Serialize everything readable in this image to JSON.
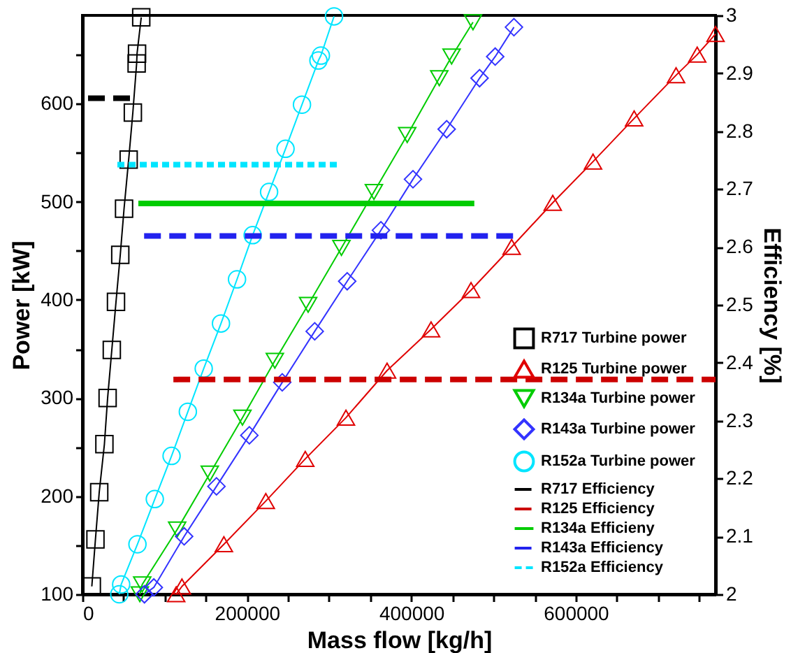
{
  "chart_data": {
    "type": "line",
    "xlabel": "Mass flow [kg/h]",
    "ylabel": "Power [kW]",
    "y2label": "Efficiency [%]",
    "xlim": [
      0,
      770000
    ],
    "ylim": [
      100,
      690
    ],
    "y2lim": [
      2,
      3
    ],
    "xticks": [
      0,
      {
        "value": 50000,
        "label": null
      },
      {
        "value": 100000,
        "label": null
      },
      {
        "value": 150000,
        "label": null
      },
      200000,
      {
        "value": 250000,
        "label": null
      },
      {
        "value": 300000,
        "label": null
      },
      {
        "value": 350000,
        "label": null
      },
      400000,
      {
        "value": 450000,
        "label": null
      },
      {
        "value": 500000,
        "label": null
      },
      {
        "value": 550000,
        "label": null
      },
      600000,
      {
        "value": 650000,
        "label": null
      },
      {
        "value": 700000,
        "label": null
      },
      {
        "value": 750000,
        "label": null
      }
    ],
    "yticks": [
      100,
      {
        "value": 150,
        "label": null
      },
      200,
      {
        "value": 250,
        "label": null
      },
      300,
      {
        "value": 350,
        "label": null
      },
      400,
      {
        "value": 450,
        "label": null
      },
      500,
      {
        "value": 550,
        "label": null
      },
      600,
      {
        "value": 650,
        "label": null
      }
    ],
    "y2ticks": [
      2,
      2.1,
      2.2,
      2.3,
      2.4,
      2.5,
      2.6,
      2.7,
      2.8,
      2.9,
      3
    ],
    "grid": false,
    "legend": "bottom right",
    "series": [
      {
        "name": "R717 Turbine power",
        "color": "#000000",
        "marker": "square",
        "line_style": "solid",
        "x": [
          11400,
          15800,
          20400,
          26700,
          30600,
          35700,
          40800,
          46000,
          50600,
          56200,
          61300,
          65900,
          66400,
          71500
        ],
        "values": [
          108,
          156,
          204,
          253,
          300,
          349,
          398,
          446,
          493,
          543,
          591,
          641,
          651,
          688
        ]
      },
      {
        "name": "R125 Turbine power",
        "color": "#e00000",
        "marker": "triangle",
        "line_style": "solid",
        "x": [
          114000,
          121000,
          172000,
          223000,
          271000,
          320500,
          370500,
          424000,
          472600,
          522000,
          572000,
          621000,
          671000,
          722000,
          747700,
          770000
        ],
        "values": [
          100,
          108,
          151,
          195,
          238,
          280,
          328,
          370,
          410,
          454,
          499,
          541,
          585,
          629,
          650,
          671
        ]
      },
      {
        "name": "R134a Turbine power",
        "color": "#00cc00",
        "marker": "triangle-down",
        "line_style": "solid",
        "x": [
          69800,
          72700,
          115200,
          154900,
          194600,
          234000,
          274500,
          315000,
          354500,
          395000,
          434000,
          449000,
          475000
        ],
        "values": [
          100,
          110,
          166,
          223,
          280,
          338,
          395,
          453,
          510,
          568,
          626,
          648,
          683
        ]
      },
      {
        "name": "R143a Turbine power",
        "color": "#3333ff",
        "marker": "diamond",
        "line_style": "solid",
        "x": [
          75400,
          86800,
          123700,
          163000,
          203000,
          243000,
          282500,
          322000,
          363000,
          402000,
          443000,
          483000,
          502000,
          524800
        ],
        "values": [
          100,
          107,
          159,
          210,
          262,
          316,
          368,
          419,
          471,
          523,
          574,
          626,
          648,
          678
        ]
      },
      {
        "name": "R152a Turbine power",
        "color": "#00e5ff",
        "marker": "circle",
        "line_style": "solid",
        "x": [
          44800,
          47100,
          66900,
          88000,
          108400,
          128200,
          147500,
          168500,
          188000,
          207000,
          227000,
          247000,
          267000,
          287000,
          290000,
          306000
        ],
        "values": [
          100,
          110,
          151,
          197,
          241,
          286,
          330,
          376,
          421,
          466,
          510,
          554,
          599,
          644,
          649,
          689
        ]
      },
      {
        "name": "R717 Efficiency",
        "axis": "y2",
        "color": "#000000",
        "marker": "none",
        "line_style": "dashed",
        "x": [
          6800,
          63000
        ],
        "values": [
          2.857,
          2.857
        ]
      },
      {
        "name": "R125 Efficiency",
        "axis": "y2",
        "color": "#cc0000",
        "marker": "none",
        "line_style": "dashed",
        "x": [
          110600,
          770000
        ],
        "values": [
          2.371,
          2.371
        ]
      },
      {
        "name": "R134a Efficieny",
        "axis": "y2",
        "color": "#00cc00",
        "marker": "none",
        "line_style": "solid",
        "x": [
          68000,
          476600
        ],
        "values": [
          2.675,
          2.675
        ]
      },
      {
        "name": "R143a Efficiency",
        "axis": "y2",
        "color": "#2222ee",
        "marker": "none",
        "line_style": "dashed",
        "x": [
          75000,
          524000
        ],
        "values": [
          2.619,
          2.619
        ]
      },
      {
        "name": "R152a Efficiency",
        "axis": "y2",
        "color": "#00e5ff",
        "marker": "none",
        "line_style": "dotted",
        "x": [
          42500,
          310000
        ],
        "values": [
          2.742,
          2.742
        ]
      }
    ]
  }
}
